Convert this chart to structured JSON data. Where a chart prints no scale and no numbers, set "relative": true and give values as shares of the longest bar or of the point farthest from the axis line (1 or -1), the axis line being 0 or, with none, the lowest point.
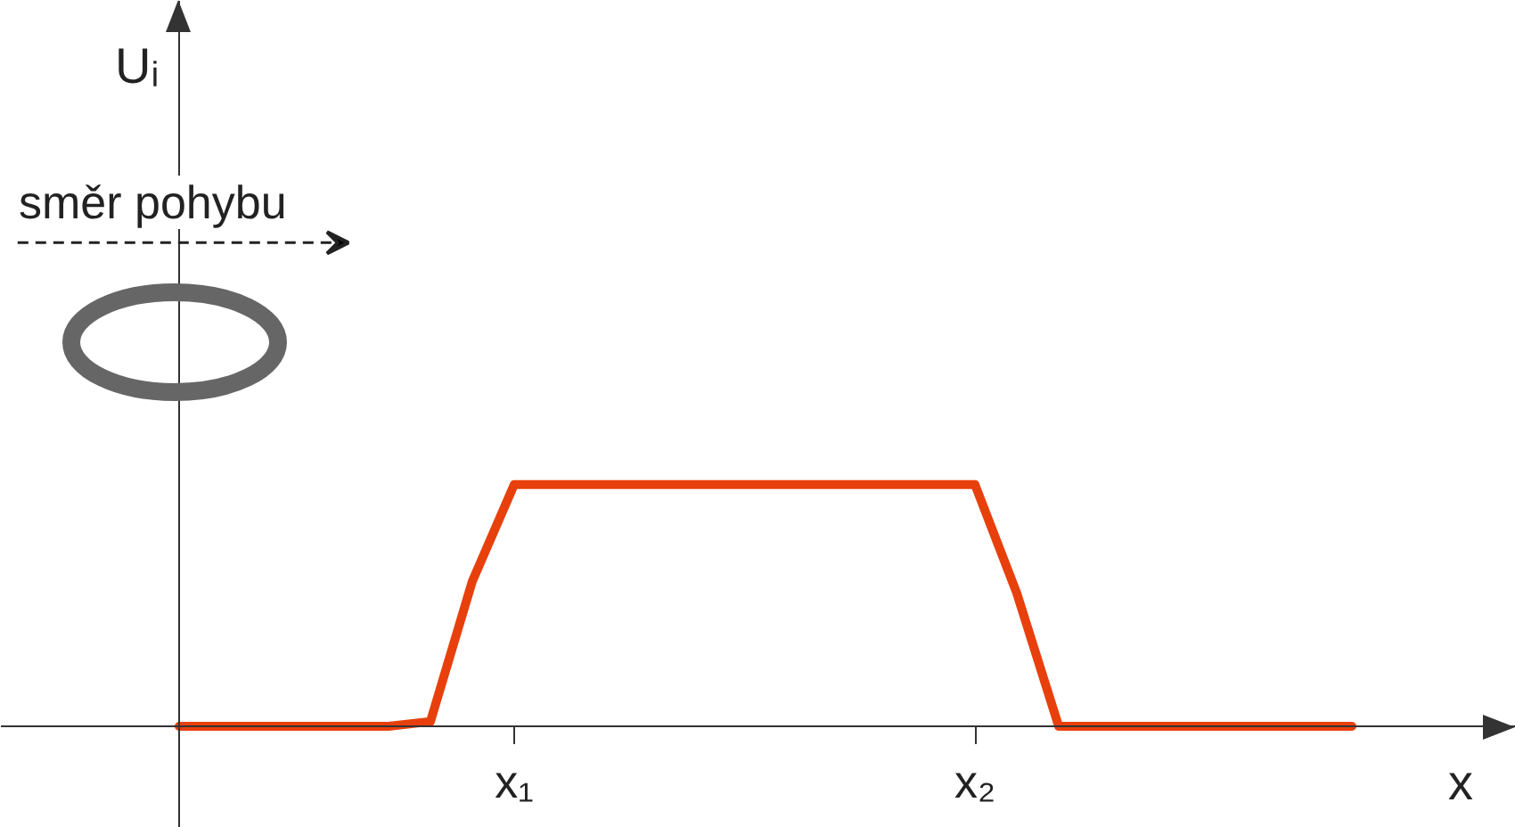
{
  "chart_data": {
    "type": "line",
    "relative": true,
    "categories": [
      null,
      null,
      null,
      null,
      null,
      null,
      null,
      null,
      "x₁",
      null,
      null,
      null,
      null,
      null,
      null,
      null,
      null,
      null,
      null,
      "x₂",
      null,
      null,
      null,
      null,
      null,
      null,
      null,
      null,
      null
    ],
    "series": [
      {
        "color": "#e8400c",
        "values": [
          0,
          0,
          0,
          0,
          0,
          0,
          0.02,
          0.6,
          1,
          1,
          1,
          1,
          1,
          1,
          1,
          1,
          1,
          1,
          1,
          1,
          0.55,
          0,
          0,
          0,
          0,
          0,
          0,
          0,
          0
        ]
      }
    ],
    "xlabel": "x",
    "annotations": [
      "Uᵢ",
      "směr pohybu"
    ],
    "marker": "none",
    "line_style": "solid"
  }
}
